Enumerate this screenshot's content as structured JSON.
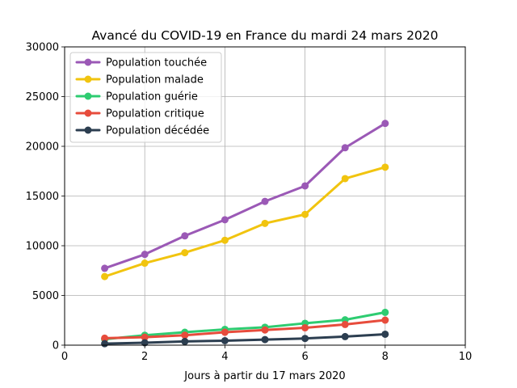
{
  "chart_data": {
    "type": "line",
    "title": "Avancé du COVID-19 en France du mardi 24 mars 2020",
    "xlabel": "Jours à partir du 17 mars 2020",
    "ylabel": "",
    "xlim": [
      0,
      10
    ],
    "ylim": [
      0,
      30000
    ],
    "xticks": [
      "0",
      "2",
      "4",
      "6",
      "8",
      "10"
    ],
    "yticks": [
      "0",
      "5000",
      "10000",
      "15000",
      "20000",
      "25000",
      "30000"
    ],
    "grid": true,
    "legend_position": "top-left",
    "x": [
      1,
      2,
      3,
      4,
      5,
      6,
      7,
      8
    ],
    "series": [
      {
        "name": "Population touchée",
        "color": "#9b59b6",
        "values": [
          7730,
          9134,
          10995,
          12612,
          14459,
          16018,
          19856,
          22302
        ]
      },
      {
        "name": "Population malade",
        "color": "#f1c40f",
        "values": [
          6900,
          8250,
          9300,
          10550,
          12250,
          13150,
          16750,
          17900
        ]
      },
      {
        "name": "Population guérie",
        "color": "#2ecc71",
        "values": [
          602,
          1000,
          1300,
          1587,
          1800,
          2200,
          2550,
          3300
        ]
      },
      {
        "name": "Population critique",
        "color": "#e74c3c",
        "values": [
          699,
          800,
          1000,
          1297,
          1525,
          1746,
          2082,
          2516
        ]
      },
      {
        "name": "Population décédée",
        "color": "#2c3e50",
        "values": [
          148,
          243,
          372,
          450,
          562,
          674,
          860,
          1100
        ]
      }
    ]
  }
}
